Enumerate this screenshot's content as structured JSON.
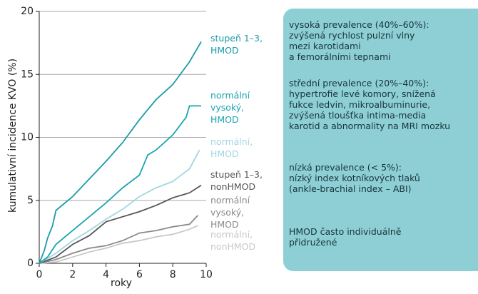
{
  "chart_data": {
    "type": "line",
    "xlabel": "roky",
    "ylabel": "kumulativní incidence KVO (%)",
    "xlim": [
      0,
      10
    ],
    "ylim": [
      0,
      20
    ],
    "xticks": [
      0,
      2,
      4,
      6,
      8,
      10
    ],
    "yticks": [
      0,
      5,
      10,
      15,
      20
    ],
    "grid": true,
    "series": [
      {
        "name": "stupeň 1–3,\nHMOD",
        "color": "#1a9ba6",
        "x": [
          0,
          0.3,
          0.5,
          0.8,
          1,
          2,
          3,
          4,
          5,
          6,
          7,
          8,
          9,
          9.7
        ],
        "values": [
          0,
          1,
          2,
          3,
          4.2,
          5.3,
          6.7,
          8.1,
          9.6,
          11.4,
          13,
          14.2,
          16,
          17.6
        ]
      },
      {
        "name": "normální\nvysoký,\nHMOD",
        "color": "#1aa5b0",
        "x": [
          0,
          0.5,
          1,
          2,
          3,
          4,
          5,
          6,
          6.5,
          7,
          8,
          8.8,
          9,
          9.7
        ],
        "values": [
          0,
          0.5,
          1.5,
          2.6,
          3.7,
          4.8,
          6,
          7,
          8.6,
          9,
          10.2,
          11.6,
          12.5,
          12.5
        ]
      },
      {
        "name": "normální,\nHMOD",
        "color": "#a3d6e2",
        "x": [
          0,
          1,
          2,
          3,
          4,
          5,
          6,
          7,
          8,
          9,
          9.6
        ],
        "values": [
          0,
          0.8,
          1.8,
          2.6,
          3.5,
          4.3,
          5.3,
          6,
          6.5,
          7.5,
          9
        ]
      },
      {
        "name": "stupeň 1–3,\nnonHMOD",
        "color": "#555555",
        "x": [
          0,
          1,
          2,
          3,
          4,
          5,
          6,
          7,
          8,
          9,
          9.7
        ],
        "values": [
          0,
          0.5,
          1.5,
          2.2,
          3.3,
          3.7,
          4.1,
          4.6,
          5.2,
          5.6,
          6.2
        ]
      },
      {
        "name": "normální\nvysoký,\nHMOD",
        "color": "#8a8a8a",
        "x": [
          0,
          1,
          2,
          3,
          4,
          5,
          6,
          7,
          8,
          9,
          9.5
        ],
        "values": [
          0,
          0.3,
          0.8,
          1.2,
          1.4,
          1.8,
          2.4,
          2.6,
          2.9,
          3.1,
          3.8
        ]
      },
      {
        "name": "normální,\nnonHMOD",
        "color": "#c8c8c8",
        "x": [
          0,
          1,
          2,
          3,
          4,
          5,
          6,
          7,
          8,
          9,
          9.5
        ],
        "values": [
          0,
          0.1,
          0.5,
          0.9,
          1.2,
          1.6,
          1.8,
          2.1,
          2.3,
          2.7,
          3
        ]
      }
    ]
  },
  "panel": {
    "blocks": [
      "vysoká prevalence (40%–60%):\nzvýšená rychlost pulzní vlny\nmezi karotidami\na femorálními tepnami",
      "střední prevalence (20%–40%):\nhypertrofie levé komory, snížená\nfukce ledvin, mikroalbuminurie,\nzvýšená tloušťka intima-media\nkarotid a abnormality na MRI mozku",
      "nízká prevalence (< 5%):\nnízký index kotníkových tlaků\n(ankle-brachial index – ABI)",
      "HMOD často individuálně\npřidružené"
    ]
  }
}
